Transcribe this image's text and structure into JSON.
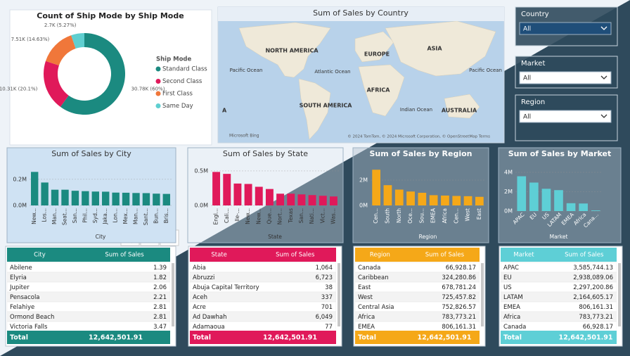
{
  "chart_data": [
    {
      "type": "donut",
      "title": "Count of Ship Mode by Ship Mode",
      "legend_title": "Ship Mode",
      "categories": [
        "Standard Class",
        "Second Class",
        "First Class",
        "Same Day"
      ],
      "values": [
        30780,
        10310,
        7510,
        2700
      ],
      "value_labels": [
        "30.78K (60%)",
        "10.31K (20.1%)",
        "7.51K (14.63%)",
        "2.7K (5.27%)"
      ],
      "colors": [
        "#1b8a80",
        "#e0195a",
        "#f0773a",
        "#5fcfd0"
      ]
    },
    {
      "type": "bar",
      "title": "Sum of Sales by City",
      "x_label": "City",
      "color": "#1b8a80",
      "categories": [
        "New...",
        "Los...",
        "Man...",
        "Seat...",
        "San...",
        "Phil...",
        "Syd...",
        "Jaka...",
        "Lon...",
        "Mex...",
        "Man...",
        "Sant...",
        "Bun...",
        "Bris..."
      ],
      "values": [
        0.256,
        0.175,
        0.12,
        0.12,
        0.112,
        0.109,
        0.106,
        0.105,
        0.098,
        0.097,
        0.095,
        0.094,
        0.09,
        0.088
      ],
      "ylim": [
        0,
        0.29
      ],
      "yticks": [
        {
          "value": 0,
          "label": "0.0M"
        },
        {
          "value": 0.2,
          "label": "0.2M"
        }
      ]
    },
    {
      "type": "bar",
      "title": "Sum of Sales by State",
      "x_label": "State",
      "color": "#e0195a",
      "categories": [
        "Engl...",
        "Cali...",
        "Ile-...",
        "New...",
        "New...",
        "Que...",
        "Nort...",
        "Texas",
        "San...",
        "Nati...",
        "Vict...",
        "Was..."
      ],
      "values": [
        0.485,
        0.457,
        0.317,
        0.311,
        0.27,
        0.238,
        0.17,
        0.17,
        0.16,
        0.15,
        0.14,
        0.13
      ],
      "ylim": [
        0,
        0.55
      ],
      "yticks": [
        {
          "value": 0,
          "label": "0.0M"
        },
        {
          "value": 0.5,
          "label": "0.5M"
        }
      ]
    },
    {
      "type": "bar",
      "title": "Sum of Sales by Region",
      "x_label": "Region",
      "color": "#f5a818",
      "categories": [
        "Cen...",
        "South",
        "North",
        "Oce...",
        "Sou...",
        "EMEA",
        "Africa",
        "Cen...",
        "West",
        "East"
      ],
      "values": [
        2.82,
        1.6,
        1.25,
        1.1,
        1.0,
        0.81,
        0.78,
        0.75,
        0.73,
        0.68
      ],
      "ylim": [
        0,
        3.0
      ],
      "yticks": [
        {
          "value": 0,
          "label": "0M"
        },
        {
          "value": 2,
          "label": "2M"
        }
      ]
    },
    {
      "type": "bar",
      "title": "Sum of Sales by Market",
      "x_label": "Market",
      "color": "#5ecfd6",
      "categories": [
        "APAC",
        "EU",
        "US",
        "LATAM",
        "EMEA",
        "Africa",
        "Cana..."
      ],
      "values": [
        3.59,
        2.94,
        2.3,
        2.16,
        0.81,
        0.78,
        0.067
      ],
      "ylim": [
        0,
        4.5
      ],
      "yticks": [
        {
          "value": 0,
          "label": "0M"
        },
        {
          "value": 2,
          "label": "2M"
        },
        {
          "value": 4,
          "label": "4M"
        }
      ]
    }
  ],
  "map": {
    "title": "Sum of Sales by Country",
    "labels": [
      "NORTH AMERICA",
      "EUROPE",
      "ASIA",
      "Pacific Ocean",
      "Atlantic Ocean",
      "AFRICA",
      "SOUTH AMERICA",
      "Indian Ocean",
      "AUSTRALIA",
      "Pacific Ocean",
      "A"
    ],
    "brand": "Microsoft Bing",
    "attribution": "© 2024 TomTom, © 2024 Microsoft Corporation, © OpenStreetMap Terms"
  },
  "slicers": [
    {
      "label": "Country",
      "value": "All"
    },
    {
      "label": "Market",
      "value": "All"
    },
    {
      "label": "Region",
      "value": "All"
    }
  ],
  "tables": [
    {
      "color": "#1b8a80",
      "columns": [
        "City",
        "Sum of Sales"
      ],
      "rows": [
        [
          "Abilene",
          "1.39"
        ],
        [
          "Elyria",
          "1.82"
        ],
        [
          "Jupiter",
          "2.06"
        ],
        [
          "Pensacola",
          "2.21"
        ],
        [
          "Felahiye",
          "2.81"
        ],
        [
          "Ormond Beach",
          "2.81"
        ],
        [
          "Victoria Falls",
          "3.47"
        ]
      ],
      "total": [
        "Total",
        "12,642,501.91"
      ]
    },
    {
      "color": "#e0195a",
      "columns": [
        "State",
        "Sum of Sales"
      ],
      "rows": [
        [
          "Abia",
          "1,064"
        ],
        [
          "Abruzzi",
          "6,723"
        ],
        [
          "Abuja Capital Territory",
          "38"
        ],
        [
          "Aceh",
          "337"
        ],
        [
          "Acre",
          "701"
        ],
        [
          "Ad Dawhah",
          "6,049"
        ],
        [
          "Adamaoua",
          "77"
        ]
      ],
      "total": [
        "Total",
        "12,642,501.91"
      ]
    },
    {
      "color": "#f5a818",
      "columns": [
        "Region",
        "Sum of Sales"
      ],
      "rows": [
        [
          "Canada",
          "66,928.17"
        ],
        [
          "Caribbean",
          "324,280.86"
        ],
        [
          "East",
          "678,781.24"
        ],
        [
          "West",
          "725,457.82"
        ],
        [
          "Central Asia",
          "752,826.57"
        ],
        [
          "Africa",
          "783,773.21"
        ],
        [
          "EMEA",
          "806,161.31"
        ]
      ],
      "total": [
        "Total",
        "12,642,501.91"
      ]
    },
    {
      "color": "#5ecfd6",
      "columns": [
        "Market",
        "Sum of Sales"
      ],
      "rows": [
        [
          "APAC",
          "3,585,744.13"
        ],
        [
          "EU",
          "2,938,089.06"
        ],
        [
          "US",
          "2,297,200.86"
        ],
        [
          "LATAM",
          "2,164,605.17"
        ],
        [
          "EMEA",
          "806,161.31"
        ],
        [
          "Africa",
          "783,773.21"
        ],
        [
          "Canada",
          "66,928.17"
        ]
      ],
      "total": [
        "Total",
        "12,642,501.91"
      ]
    }
  ]
}
